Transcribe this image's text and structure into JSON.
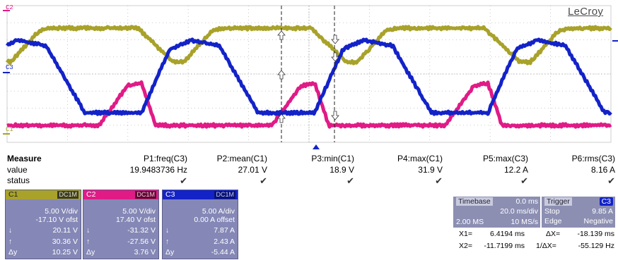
{
  "brand": "LeCroy",
  "channel_markers": {
    "c1": "C1",
    "c2": "C2",
    "c3": "C3"
  },
  "colors": {
    "c1": "#a8a22a",
    "c2": "#e01b86",
    "c3": "#1323c8",
    "grid": "#bbbbbb",
    "panel": "#8588b6"
  },
  "measure": {
    "header": "Measure",
    "row_value": "value",
    "row_status": "status",
    "params": [
      {
        "name": "P1:freq(C3)",
        "value": "19.9483736 Hz"
      },
      {
        "name": "P2:mean(C1)",
        "value": "27.01 V"
      },
      {
        "name": "P3:min(C1)",
        "value": "18.9 V"
      },
      {
        "name": "P4:max(C1)",
        "value": "31.9 V"
      },
      {
        "name": "P5:max(C3)",
        "value": "12.2 A"
      },
      {
        "name": "P6:rms(C3)",
        "value": "8.16 A"
      }
    ],
    "status_glyph": "✔"
  },
  "channels": [
    {
      "name": "C1",
      "coupling": "DC1M",
      "scale": "5.00 V/div",
      "offset": "-17.10 V ofst",
      "down_label": "↓",
      "down_value": "20.11 V",
      "up_label": "↑",
      "up_value": "30.36 V",
      "dy_label": "Δy",
      "dy_value": "10.25 V"
    },
    {
      "name": "C2",
      "coupling": "DC1M",
      "scale": "5.00 V/div",
      "offset": "17.40 V ofst",
      "down_label": "↓",
      "down_value": "-31.32 V",
      "up_label": "↑",
      "up_value": "-27.56 V",
      "dy_label": "Δy",
      "dy_value": "3.76 V"
    },
    {
      "name": "C3",
      "coupling": "DC1M",
      "scale": "5.00 A/div",
      "offset": "0.00 A offset",
      "down_label": "↓",
      "down_value": "7.87 A",
      "up_label": "↑",
      "up_value": "2.43 A",
      "dy_label": "Δy",
      "dy_value": "-5.44 A"
    }
  ],
  "timebase": {
    "label": "Timebase",
    "delay": "0.0 ms",
    "scale": "20.0 ms/div",
    "samples": "2.00 MS",
    "rate": "10 MS/s"
  },
  "trigger": {
    "label": "Trigger",
    "source": "C3",
    "mode": "Stop",
    "level": "9.85 A",
    "type": "Edge",
    "slope": "Negative"
  },
  "cursors": {
    "x1_label": "X1=",
    "x1": "6.4194 ms",
    "x2_label": "X2=",
    "x2": "-11.7199 ms",
    "dx_label": "ΔX=",
    "dx": "-18.139 ms",
    "inv_dx_label": "1/ΔX=",
    "inv_dx": "-55.129 Hz"
  }
}
